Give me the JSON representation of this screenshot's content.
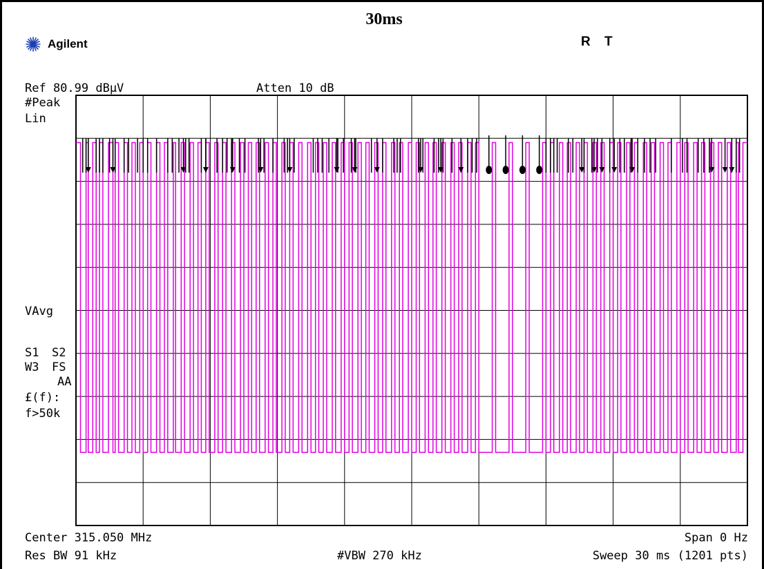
{
  "caption": "30ms",
  "brand": {
    "name": "Agilent",
    "logo_icon": "agilent-spark-logo"
  },
  "annunciators": [
    "R",
    "T"
  ],
  "header": {
    "ref_level": "Ref 80.99 dBµV",
    "atten": "Atten 10 dB"
  },
  "side_labels": {
    "detector": "#Peak",
    "scale": "Lin",
    "avg": "VAvg",
    "s1": "S1",
    "s2": "S2",
    "w3": "W3",
    "fs": "FS",
    "aa": "AA",
    "func": "£(f):",
    "cond": "f>50k"
  },
  "footer": {
    "center": "Center 315.050 MHz",
    "span": "Span 0 Hz",
    "res_bw": "Res BW 91 kHz",
    "vbw": "#VBW 270 kHz",
    "sweep": "Sweep 30 ms (1201 pts)"
  },
  "colors": {
    "trace": "#e000e0",
    "grid": "#000000",
    "background": "#ffffff"
  },
  "chart_data": {
    "type": "line",
    "description_units": "time (ms) vs amplitude (fraction of reference)",
    "xlim": [
      0,
      30
    ],
    "grid_divisions": {
      "x": 10,
      "y": 10
    },
    "grid": true,
    "signal": {
      "high_level": 0.89,
      "low_level": 0.17,
      "pulse_edges_ms": [
        0.2,
        0.45,
        0.55,
        0.75,
        0.9,
        1.05,
        1.2,
        1.45,
        1.65,
        1.75,
        1.9,
        2.15,
        2.3,
        2.5,
        2.65,
        2.85,
        3.0,
        3.2,
        3.35,
        3.6,
        3.75,
        3.95,
        4.1,
        4.35,
        4.45,
        4.7,
        4.85,
        5.1,
        5.25,
        5.45,
        5.6,
        5.8,
        5.95,
        6.2,
        6.35,
        6.55,
        6.7,
        6.95,
        7.1,
        7.35,
        7.5,
        7.7,
        7.85,
        8.05,
        8.2,
        8.45,
        8.6,
        8.8,
        8.95,
        9.2,
        9.35,
        9.55,
        9.7,
        9.95,
        10.1,
        10.35,
        10.5,
        10.7,
        10.85,
        11.05,
        11.2,
        11.45,
        11.6,
        11.85,
        12.0,
        12.2,
        12.35,
        12.6,
        12.75,
        12.95,
        13.1,
        13.35,
        13.5,
        13.7,
        13.85,
        14.1,
        14.25,
        14.45,
        14.6,
        14.85,
        15.0,
        15.2,
        15.35,
        15.6,
        15.75,
        15.95,
        16.1,
        16.35,
        16.5,
        16.75,
        16.9,
        17.1,
        17.25,
        17.5,
        17.65,
        17.85,
        18.0,
        18.6,
        18.75,
        19.35,
        19.5,
        20.1,
        20.25,
        20.85,
        21.0,
        21.2,
        21.35,
        21.6,
        21.75,
        21.95,
        22.1,
        22.35,
        22.5,
        22.7,
        22.85,
        23.1,
        23.25,
        23.45,
        23.6,
        23.85,
        24.0,
        24.2,
        24.35,
        24.6,
        24.75,
        24.95,
        25.1,
        25.35,
        25.5,
        25.7,
        25.85,
        26.1,
        26.25,
        26.45,
        26.6,
        26.85,
        27.0,
        27.2,
        27.35,
        27.6,
        27.75,
        27.95,
        28.1,
        28.35,
        28.5,
        28.7,
        28.85,
        29.1,
        29.25,
        29.5,
        29.6,
        29.8
      ]
    },
    "annotations": {
      "plain_ticks_ms": [
        0.3,
        0.45,
        0.9,
        1.05,
        1.2,
        1.5,
        1.75,
        2.15,
        2.35,
        2.75,
        3.0,
        3.2,
        3.6,
        4.1,
        4.3,
        4.6,
        4.9,
        5.05,
        5.6,
        5.8,
        6.3,
        6.55,
        6.75,
        6.95,
        7.3,
        7.55,
        8.15,
        8.4,
        8.8,
        9.3,
        9.45,
        9.75,
        10.6,
        10.8,
        11.0,
        11.3,
        11.7,
        11.95,
        12.3,
        12.5,
        13.2,
        13.7,
        14.2,
        14.35,
        14.5,
        15.3,
        15.5,
        16.0,
        16.2,
        16.4,
        16.8,
        17.2,
        17.5,
        17.7,
        17.9,
        21.0,
        21.2,
        21.35,
        21.5,
        22.0,
        22.2,
        22.7,
        23.05,
        23.3,
        23.85,
        24.3,
        24.5,
        24.8,
        25.1,
        25.4,
        25.65,
        25.9,
        26.6,
        27.1,
        27.3,
        27.8,
        28.05,
        28.3,
        29.3,
        29.5,
        29.65
      ],
      "arrow_ticks_ms": [
        0.55,
        1.65,
        4.8,
        5.8,
        7.0,
        8.25,
        9.55,
        11.65,
        12.45,
        13.45,
        15.4,
        16.3,
        17.2,
        22.6,
        23.15,
        23.5,
        24.05,
        24.85,
        28.4,
        29.0,
        29.3
      ],
      "dot_ticks_ms": [
        18.45,
        19.2,
        19.95,
        20.7
      ]
    }
  }
}
